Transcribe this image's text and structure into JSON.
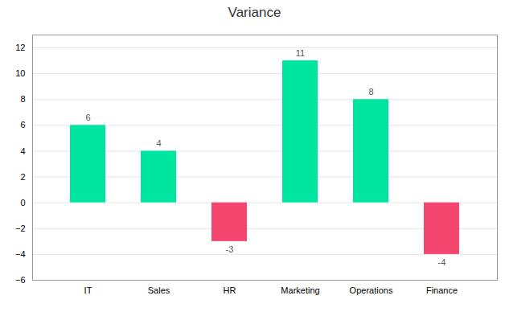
{
  "chart_data": {
    "type": "bar",
    "title": "Variance",
    "categories": [
      "IT",
      "Sales",
      "HR",
      "Marketing",
      "Operations",
      "Finance"
    ],
    "values": [
      6,
      4,
      -3,
      11,
      8,
      -4
    ],
    "colors": [
      "#00e5a0",
      "#00e5a0",
      "#f4466e",
      "#00e5a0",
      "#00e5a0",
      "#f4466e"
    ],
    "ylim": [
      -6,
      13
    ],
    "yticks": [
      -6,
      -4,
      -2,
      0,
      2,
      4,
      6,
      8,
      10,
      12
    ],
    "grid": true,
    "data_labels": true
  }
}
